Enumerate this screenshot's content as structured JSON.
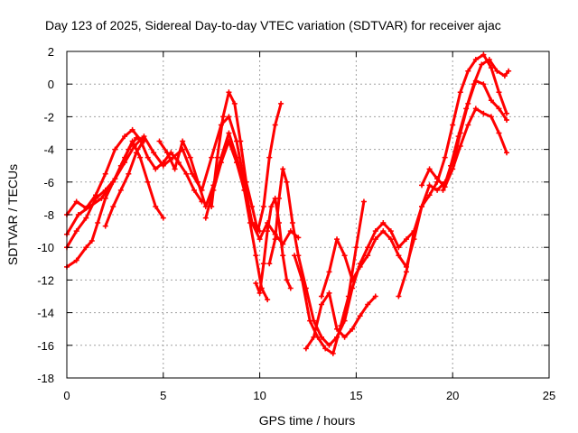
{
  "chart_data": {
    "type": "scatter",
    "title": "Day 123 of 2025, Sidereal Day-to-day VTEC variation (SDTVAR) for receiver ajac",
    "xlabel": "GPS time / hours",
    "ylabel": "SDTVAR / TECUs",
    "xlim": [
      0,
      25
    ],
    "ylim": [
      -18,
      2
    ],
    "xticks": [
      0,
      5,
      10,
      15,
      20,
      25
    ],
    "yticks": [
      2,
      0,
      -2,
      -4,
      -6,
      -8,
      -10,
      -12,
      -14,
      -16,
      -18
    ],
    "grid": true,
    "marker": "+",
    "color": "#ff0000",
    "series": [
      {
        "x": [
          0.0,
          0.5,
          1.0,
          1.5,
          2.0,
          2.5,
          3.0,
          3.4,
          3.8,
          4.2,
          4.6,
          5.0,
          5.4,
          5.8,
          6.2,
          6.6,
          7.0
        ],
        "y": [
          -8.0,
          -7.2,
          -7.6,
          -6.8,
          -5.5,
          -4.0,
          -3.2,
          -2.8,
          -3.4,
          -4.5,
          -5.2,
          -4.8,
          -4.2,
          -4.8,
          -5.5,
          -6.5,
          -7.2
        ]
      },
      {
        "x": [
          0.0,
          0.6,
          1.2,
          1.8,
          2.4,
          3.0,
          3.5,
          4.0,
          4.5,
          5.0,
          5.5,
          6.0,
          6.5,
          7.0,
          7.5,
          8.0,
          8.4,
          8.8,
          9.2,
          9.6,
          10.0
        ],
        "y": [
          -9.2,
          -8.0,
          -7.5,
          -7.0,
          -6.0,
          -4.8,
          -3.8,
          -3.2,
          -4.2,
          -5.0,
          -4.5,
          -4.0,
          -5.5,
          -6.5,
          -4.5,
          -2.5,
          -2.0,
          -3.5,
          -6.0,
          -8.5,
          -9.0
        ]
      },
      {
        "x": [
          0.0,
          0.5,
          1.0,
          1.5,
          2.0,
          2.5,
          3.0,
          3.4,
          3.8,
          4.2,
          4.6,
          5.0
        ],
        "y": [
          -10.0,
          -9.0,
          -8.2,
          -7.0,
          -6.5,
          -5.8,
          -4.5,
          -3.5,
          -4.5,
          -6.0,
          -7.5,
          -8.2
        ]
      },
      {
        "x": [
          0.0,
          0.5,
          1.0,
          1.3,
          1.6,
          2.0,
          2.4,
          2.8,
          3.2,
          3.6,
          4.0
        ],
        "y": [
          -11.2,
          -10.8,
          -10.0,
          -9.6,
          -8.5,
          -7.0,
          -6.0,
          -5.0,
          -4.0,
          -3.3,
          -3.5
        ]
      },
      {
        "x": [
          2.0,
          2.4,
          2.8,
          3.2,
          3.6,
          4.0
        ],
        "y": [
          -8.7,
          -7.5,
          -6.5,
          -5.5,
          -4.2,
          -3.4
        ]
      },
      {
        "x": [
          4.8,
          5.2,
          5.6,
          6.0,
          6.4,
          6.8,
          7.2,
          7.6,
          8.0,
          8.4,
          8.8,
          9.2,
          9.6,
          10.0,
          10.4,
          10.8,
          11.2,
          11.6,
          12.0
        ],
        "y": [
          -3.5,
          -4.2,
          -5.2,
          -3.5,
          -4.5,
          -6.0,
          -7.5,
          -6.2,
          -4.5,
          -3.0,
          -4.5,
          -6.5,
          -8.5,
          -9.5,
          -8.5,
          -9.2,
          -9.8,
          -9.0,
          -9.4
        ]
      },
      {
        "x": [
          7.5,
          7.8,
          8.1,
          8.4,
          8.7,
          9.0,
          9.3,
          9.6,
          9.9,
          10.2,
          10.5,
          10.8,
          11.1
        ],
        "y": [
          -7.5,
          -4.5,
          -2.0,
          -0.5,
          -1.2,
          -3.5,
          -6.0,
          -7.5,
          -9.0,
          -7.5,
          -4.5,
          -2.5,
          -1.2
        ]
      },
      {
        "x": [
          7.2,
          7.6,
          8.0,
          8.4,
          8.8,
          9.2,
          9.5,
          9.8,
          10.1,
          10.4
        ],
        "y": [
          -8.2,
          -6.5,
          -4.8,
          -3.5,
          -4.8,
          -6.5,
          -8.5,
          -10.5,
          -12.5,
          -13.2
        ]
      },
      {
        "x": [
          9.8,
          10.0,
          10.2,
          10.4,
          10.6,
          10.8,
          11.0,
          11.2,
          11.4,
          11.6
        ],
        "y": [
          -12.2,
          -12.8,
          -11.0,
          -9.0,
          -7.5,
          -7.0,
          -8.5,
          -10.5,
          -12.0,
          -12.5
        ]
      },
      {
        "x": [
          10.5,
          10.8,
          11.0,
          11.2,
          11.4,
          11.7,
          12.0,
          12.4,
          12.8,
          13.2,
          13.6,
          14.0,
          14.4,
          14.8,
          15.2,
          15.6,
          16.0,
          16.4,
          16.8,
          17.2,
          17.6,
          18.0
        ],
        "y": [
          -11.0,
          -9.5,
          -7.0,
          -5.2,
          -6.0,
          -8.5,
          -10.5,
          -12.5,
          -14.5,
          -15.5,
          -16.0,
          -15.5,
          -14.5,
          -12.5,
          -11.0,
          -10.0,
          -9.0,
          -8.5,
          -9.0,
          -10.0,
          -9.5,
          -9.0
        ]
      },
      {
        "x": [
          11.8,
          12.2,
          12.6,
          13.0,
          13.4,
          13.8,
          14.2,
          14.6,
          15.0,
          15.4
        ],
        "y": [
          -10.5,
          -12.0,
          -14.5,
          -15.5,
          -16.2,
          -16.5,
          -14.8,
          -13.0,
          -10.0,
          -7.2
        ]
      },
      {
        "x": [
          12.4,
          12.8,
          13.2,
          13.6,
          14.0,
          14.4,
          14.8,
          15.2,
          15.6,
          16.0
        ],
        "y": [
          -16.2,
          -15.5,
          -13.5,
          -12.8,
          -15.0,
          -15.5,
          -15.0,
          -14.2,
          -13.5,
          -13.0
        ]
      },
      {
        "x": [
          13.2,
          13.6,
          14.0,
          14.4,
          14.8,
          15.2,
          15.6,
          16.0,
          16.4,
          16.8,
          17.2,
          17.6,
          18.0,
          18.4,
          18.8,
          19.2,
          19.6
        ],
        "y": [
          -13.0,
          -11.5,
          -9.5,
          -10.5,
          -12.0,
          -11.2,
          -10.5,
          -9.5,
          -9.0,
          -9.5,
          -10.5,
          -11.2,
          -9.5,
          -7.5,
          -6.2,
          -6.5,
          -6.0
        ]
      },
      {
        "x": [
          17.2,
          17.6,
          18.0,
          18.4,
          18.8,
          19.2,
          19.6,
          20.0,
          20.4,
          20.8,
          21.2,
          21.6,
          22.0,
          22.4,
          22.8
        ],
        "y": [
          -13.0,
          -11.5,
          -9.0,
          -7.5,
          -6.8,
          -6.0,
          -4.5,
          -2.5,
          -0.5,
          0.8,
          1.5,
          1.8,
          1.0,
          -0.5,
          -1.8
        ]
      },
      {
        "x": [
          18.4,
          18.8,
          19.2,
          19.6,
          20.0,
          20.4,
          20.8,
          21.2,
          21.6,
          22.0,
          22.4,
          22.8
        ],
        "y": [
          -6.2,
          -5.2,
          -5.8,
          -6.3,
          -5.2,
          -3.8,
          -2.5,
          -1.5,
          -1.8,
          -2.0,
          -3.0,
          -4.2
        ]
      },
      {
        "x": [
          19.5,
          19.9,
          20.3,
          20.7,
          21.1,
          21.5,
          21.9,
          22.3,
          22.7,
          22.9
        ],
        "y": [
          -6.5,
          -5.0,
          -3.2,
          -1.5,
          0.0,
          1.2,
          1.5,
          0.8,
          0.5,
          0.8
        ]
      },
      {
        "x": [
          20.0,
          20.4,
          20.8,
          21.2,
          21.6,
          22.0,
          22.4,
          22.8
        ],
        "y": [
          -5.0,
          -3.0,
          -1.2,
          0.2,
          0.0,
          -1.0,
          -1.5,
          -2.2
        ]
      }
    ]
  }
}
